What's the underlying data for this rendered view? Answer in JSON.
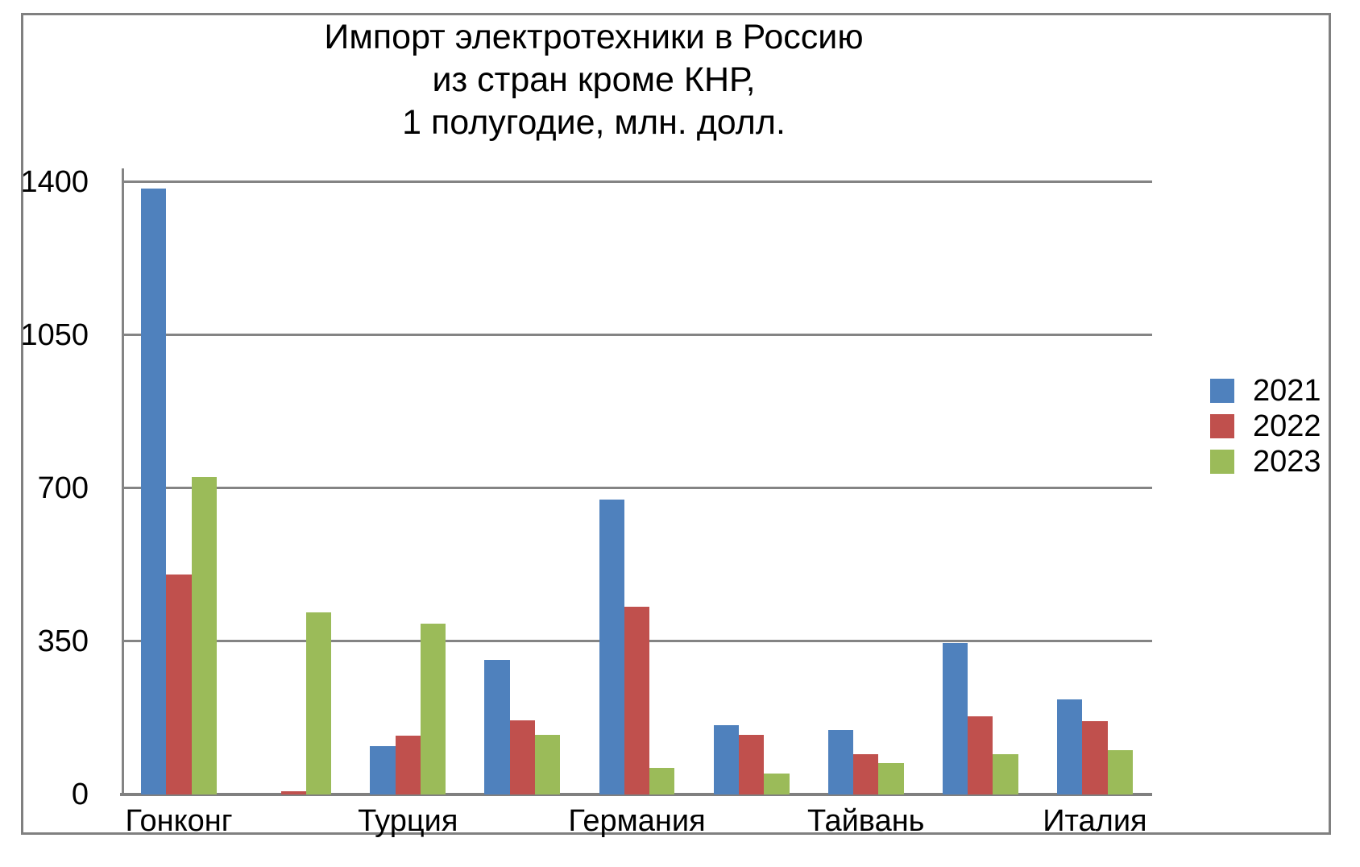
{
  "title": {
    "lines": [
      "Импорт электротехники в Россию",
      "из стран кроме КНР,",
      "1 полугодие, млн. долл."
    ]
  },
  "chart_data": {
    "type": "bar",
    "title": "Импорт электротехники в Россию из стран кроме КНР, 1 полугодие, млн. долл.",
    "categories": [
      "Гонконг",
      "",
      "Турция",
      "",
      "Германия",
      "",
      "Тайвань",
      "",
      "Италия"
    ],
    "series": [
      {
        "name": "2021",
        "color": "#4F81BD",
        "values": [
          1385,
          0,
          110,
          308,
          675,
          158,
          148,
          347,
          218
        ]
      },
      {
        "name": "2022",
        "color": "#C0504D",
        "values": [
          503,
          8,
          135,
          170,
          430,
          136,
          92,
          178,
          167
        ]
      },
      {
        "name": "2023",
        "color": "#9BBB59",
        "values": [
          726,
          416,
          390,
          137,
          61,
          48,
          72,
          93,
          102
        ]
      }
    ],
    "xlabel": "",
    "ylabel": "",
    "ylim": [
      0,
      1431
    ],
    "yticks": [
      0,
      350,
      700,
      1050,
      1400
    ],
    "grid": true,
    "legend_position": "right"
  },
  "colors": {
    "grid": "#848484",
    "axis": "#808080",
    "frame": "#808080",
    "text": "#000000",
    "background": "#ffffff"
  }
}
